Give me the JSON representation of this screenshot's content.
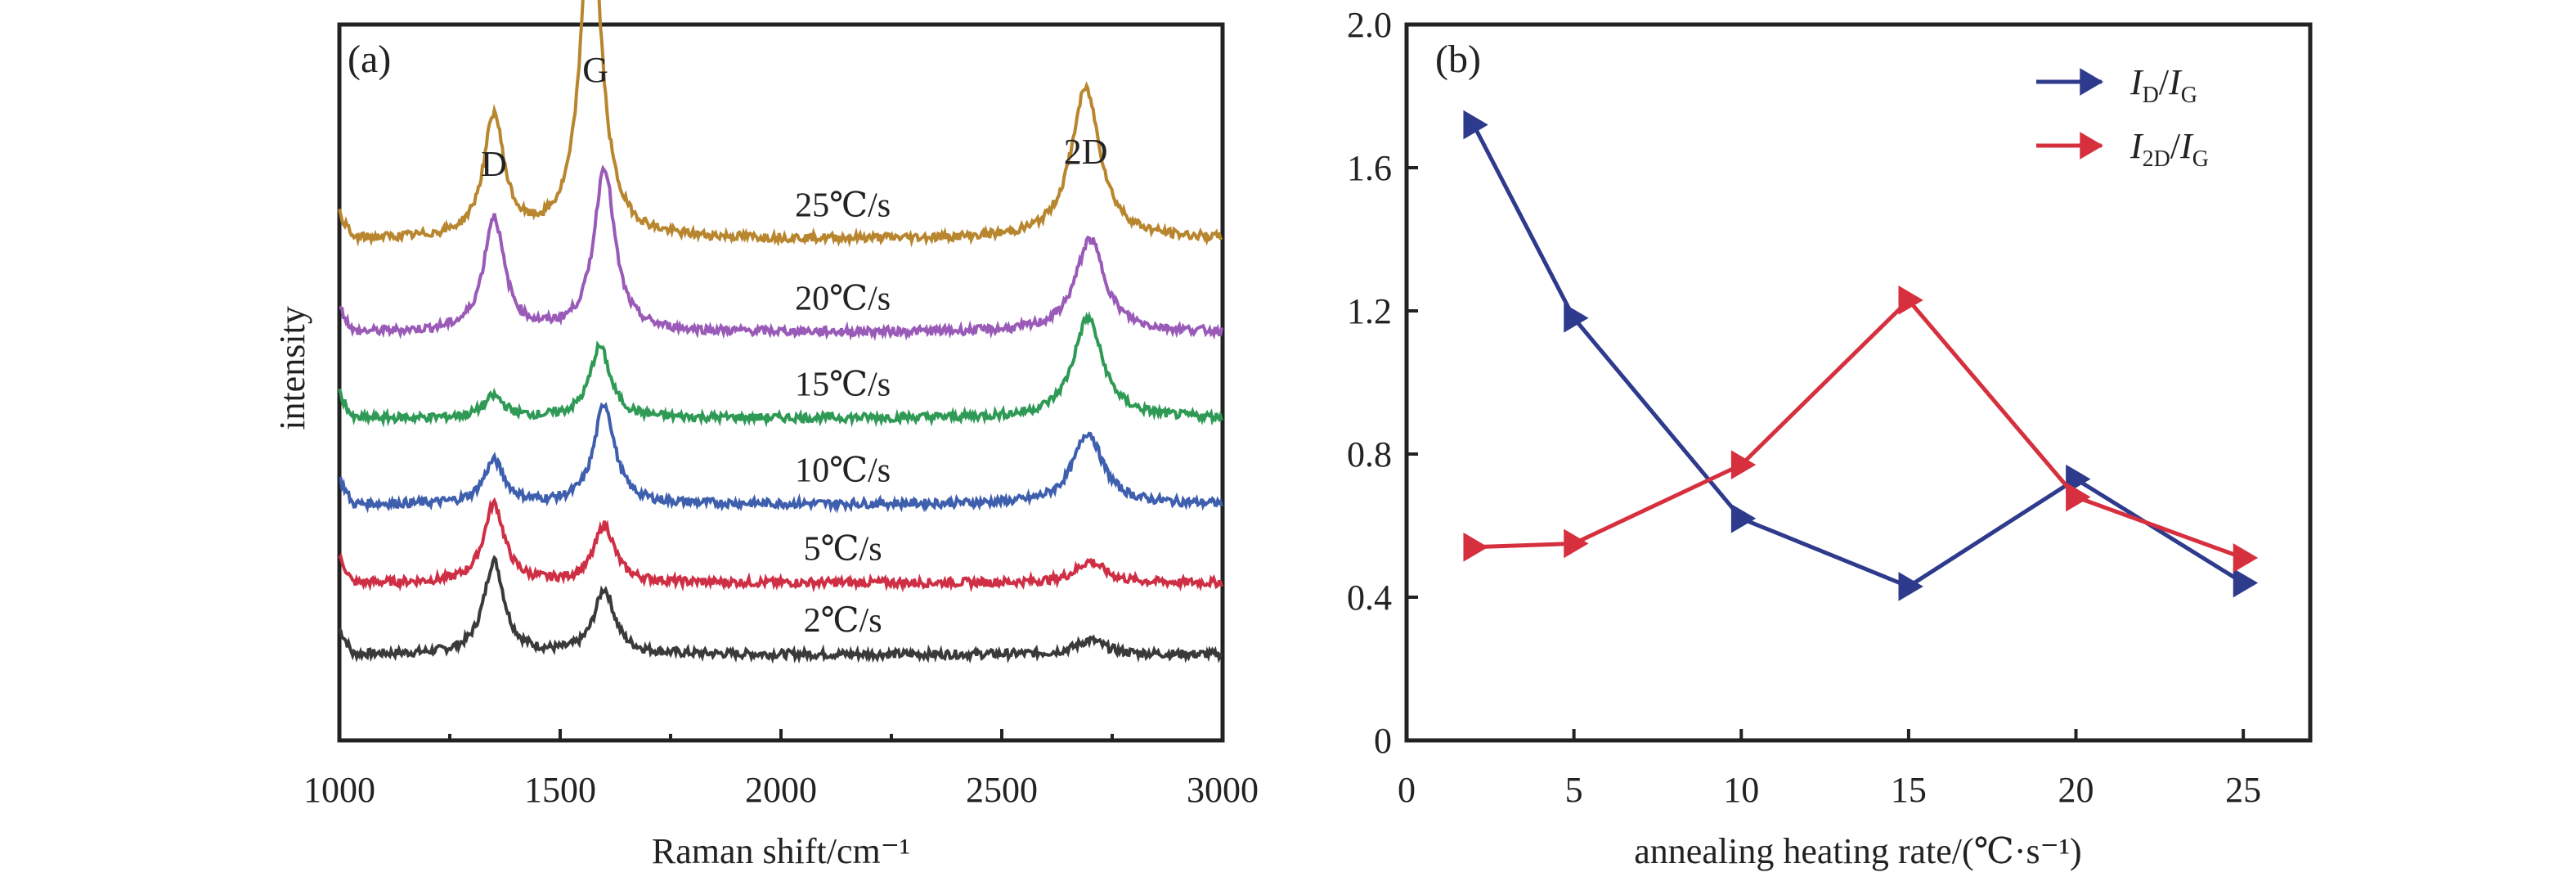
{
  "chart_data": [
    {
      "panel": "(a)",
      "type": "line",
      "xlabel": "Raman shift/cm⁻¹",
      "ylabel": "intensity",
      "xlim": [
        1000,
        3000
      ],
      "xticks": [
        1000,
        1500,
        2000,
        2500,
        3000
      ],
      "peak_labels": [
        {
          "text": "D",
          "x": 1350
        },
        {
          "text": "G",
          "x": 1580
        },
        {
          "text": "2D",
          "x": 2690
        }
      ],
      "series": [
        {
          "name": "2℃/s",
          "color": "#3a3a3a",
          "baseline": 0.12,
          "peaks": {
            "D": [
              1350,
              0.13
            ],
            "G": [
              1600,
              0.09
            ],
            "2D": [
              2700,
              0.02
            ]
          }
        },
        {
          "name": "5℃/s",
          "color": "#cf2f45",
          "baseline": 0.22,
          "peaks": {
            "D": [
              1350,
              0.11
            ],
            "G": [
              1600,
              0.08
            ],
            "2D": [
              2700,
              0.03
            ]
          }
        },
        {
          "name": "10℃/s",
          "color": "#3e5fae",
          "baseline": 0.33,
          "peaks": {
            "D": [
              1350,
              0.06
            ],
            "G": [
              1600,
              0.14
            ],
            "2D": [
              2695,
              0.1
            ]
          }
        },
        {
          "name": "15℃/s",
          "color": "#2e9a55",
          "baseline": 0.45,
          "peaks": {
            "D": [
              1350,
              0.03
            ],
            "G": [
              1590,
              0.1
            ],
            "2D": [
              2695,
              0.14
            ]
          }
        },
        {
          "name": "20℃/s",
          "color": "#9a5ab8",
          "baseline": 0.57,
          "peaks": {
            "D": [
              1350,
              0.16
            ],
            "G": [
              1600,
              0.23
            ],
            "2D": [
              2700,
              0.13
            ]
          }
        },
        {
          "name": "25℃/s",
          "color": "#b8862e",
          "baseline": 0.7,
          "peaks": {
            "D": [
              1350,
              0.17
            ],
            "G": [
              1570,
              0.47
            ],
            "2D": [
              2690,
              0.21
            ]
          }
        }
      ]
    },
    {
      "panel": "(b)",
      "type": "line",
      "xlabel": "annealing heating rate/(℃·s⁻¹)",
      "xlim": [
        0,
        27
      ],
      "ylim": [
        0,
        2.0
      ],
      "xticks": [
        0,
        5,
        10,
        15,
        20,
        25
      ],
      "yticks": [
        "0",
        "0.4",
        "0.8",
        "1.2",
        "1.6",
        "2.0"
      ],
      "x": [
        2,
        5,
        10,
        15,
        20,
        25
      ],
      "legend_position": "top-right",
      "series": [
        {
          "name": "I_D/I_G",
          "main1": "I",
          "sub1": "D",
          "main2": "I",
          "sub2": "G",
          "color": "#2e3a8c",
          "values": [
            1.72,
            1.18,
            0.62,
            0.43,
            0.73,
            0.44
          ]
        },
        {
          "name": "I_2D/I_G",
          "main1": "I",
          "sub1": "2D",
          "main2": "I",
          "sub2": "G",
          "color": "#d6303f",
          "values": [
            0.54,
            0.55,
            0.77,
            1.23,
            0.68,
            0.51
          ]
        }
      ]
    }
  ]
}
